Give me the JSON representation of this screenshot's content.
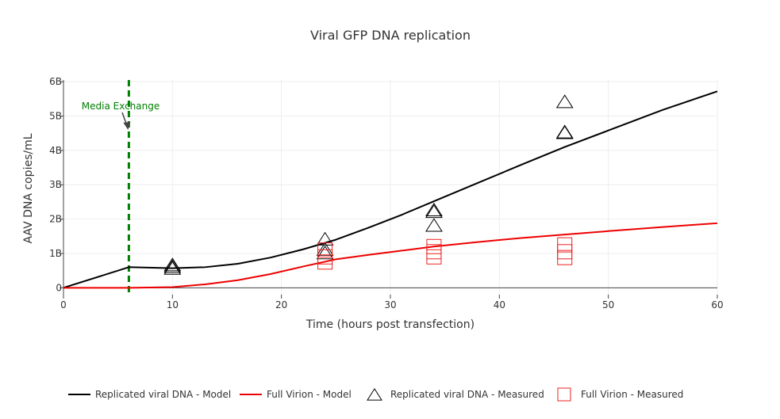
{
  "chart_data": {
    "type": "line",
    "title": "Viral GFP DNA replication",
    "xlabel": "Time (hours post transfection)",
    "ylabel": "AAV DNA copies/mL",
    "xlim": [
      0,
      60
    ],
    "ylim": [
      -0.2,
      6.05
    ],
    "x_ticks": [
      0,
      10,
      20,
      30,
      40,
      50,
      60
    ],
    "x_tick_labels": [
      "0",
      "10",
      "20",
      "30",
      "40",
      "50",
      "60"
    ],
    "y_ticks": [
      0,
      1,
      2,
      3,
      4,
      5,
      6
    ],
    "y_tick_labels": [
      "0",
      "1B",
      "2B",
      "3B",
      "4B",
      "5B",
      "6B"
    ],
    "y_unit": "billion copies/mL",
    "grid": true,
    "legend_position": "bottom",
    "series": [
      {
        "name": "Replicated viral DNA - Model",
        "kind": "line",
        "color": "#000000",
        "x": [
          0,
          6,
          10,
          13,
          16,
          19,
          22,
          25,
          28,
          31,
          34,
          38,
          42,
          46,
          50,
          55,
          60
        ],
        "y": [
          0,
          0.6,
          0.57,
          0.6,
          0.7,
          0.88,
          1.12,
          1.4,
          1.75,
          2.12,
          2.52,
          3.05,
          3.58,
          4.1,
          4.58,
          5.18,
          5.72
        ]
      },
      {
        "name": "Full Virion - Model",
        "kind": "line",
        "color": "#ee0000",
        "x": [
          0,
          6,
          10,
          13,
          16,
          19,
          22,
          25,
          28,
          31,
          34,
          38,
          42,
          46,
          50,
          55,
          60
        ],
        "y": [
          0,
          0,
          0.02,
          0.1,
          0.22,
          0.4,
          0.62,
          0.83,
          0.96,
          1.08,
          1.2,
          1.33,
          1.45,
          1.55,
          1.65,
          1.77,
          1.88
        ]
      },
      {
        "name": "Replicated viral DNA - Measured",
        "kind": "marker",
        "marker": "triangle-open",
        "color": "#000000",
        "x": [
          10,
          10,
          10,
          24,
          24,
          24,
          34,
          34,
          34,
          46,
          46,
          46
        ],
        "y": [
          0.55,
          0.6,
          0.65,
          1.0,
          1.1,
          1.4,
          1.8,
          2.2,
          2.25,
          4.5,
          4.52,
          5.4
        ]
      },
      {
        "name": "Full Virion - Measured",
        "kind": "marker",
        "marker": "square-open",
        "color": "#ee2222",
        "x": [
          24,
          24,
          24,
          34,
          34,
          34,
          46,
          46,
          46
        ],
        "y": [
          0.75,
          0.9,
          1.1,
          0.9,
          1.05,
          1.2,
          0.88,
          1.05,
          1.25
        ]
      }
    ],
    "annotations": [
      {
        "text": "Media Exchange",
        "color": "#008000",
        "vline_x": 6,
        "arrow_to": [
          6,
          4.6
        ]
      }
    ]
  }
}
